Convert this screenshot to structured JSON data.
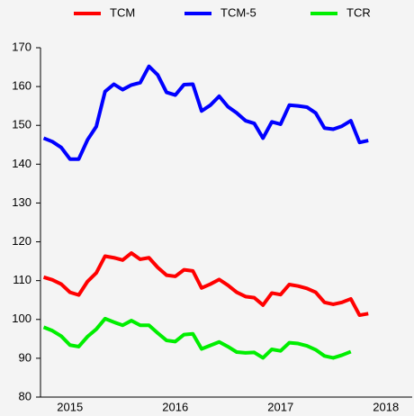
{
  "chart_data": {
    "type": "line",
    "x": [
      2015.0,
      2015.083,
      2015.167,
      2015.25,
      2015.333,
      2015.417,
      2015.5,
      2015.583,
      2015.667,
      2015.75,
      2015.833,
      2015.917,
      2016.0,
      2016.083,
      2016.167,
      2016.25,
      2016.333,
      2016.417,
      2016.5,
      2016.583,
      2016.667,
      2016.75,
      2016.833,
      2016.917,
      2017.0,
      2017.083,
      2017.167,
      2017.25,
      2017.333,
      2017.417,
      2017.5,
      2017.583,
      2017.667,
      2017.75,
      2017.833,
      2017.917,
      2018.0,
      2018.083
    ],
    "series": [
      {
        "name": "TCM",
        "color": "#ff0000",
        "values": [
          110.9,
          110.2,
          109.1,
          107.0,
          106.3,
          109.8,
          112.0,
          116.3,
          115.9,
          115.3,
          117.1,
          115.5,
          115.9,
          113.4,
          111.4,
          111.1,
          112.8,
          112.5,
          108.1,
          109.1,
          110.3,
          108.8,
          107.0,
          105.9,
          105.6,
          103.7,
          106.8,
          106.4,
          109.0,
          108.6,
          108.0,
          107.0,
          104.4,
          103.9,
          104.4,
          105.3,
          101.1,
          101.5
        ]
      },
      {
        "name": "TCM-5",
        "color": "#0000ff",
        "values": [
          146.7,
          145.8,
          144.3,
          141.3,
          141.3,
          146.3,
          149.7,
          158.7,
          160.6,
          159.2,
          160.4,
          161.0,
          165.2,
          163.0,
          158.5,
          157.8,
          160.5,
          160.6,
          153.7,
          155.2,
          157.5,
          154.8,
          153.2,
          151.2,
          150.5,
          146.7,
          150.9,
          150.3,
          155.2,
          155.0,
          154.7,
          153.2,
          149.3,
          149.0,
          149.8,
          151.2,
          145.6,
          146.1
        ]
      },
      {
        "name": "TCR",
        "color": "#00ee00",
        "values": [
          98.0,
          97.1,
          95.7,
          93.4,
          93.0,
          95.6,
          97.5,
          100.2,
          99.3,
          98.5,
          99.7,
          98.5,
          98.5,
          96.5,
          94.6,
          94.3,
          96.1,
          96.3,
          92.4,
          93.3,
          94.2,
          93.0,
          91.6,
          91.4,
          91.5,
          90.1,
          92.3,
          91.9,
          94.0,
          93.8,
          93.2,
          92.2,
          90.6,
          90.1,
          90.8,
          91.7,
          null,
          null
        ]
      }
    ],
    "xlim": [
      2014.97,
      2018.5
    ],
    "xticks": [
      {
        "value": 2015.25,
        "label": "2015"
      },
      {
        "value": 2016.25,
        "label": "2016"
      },
      {
        "value": 2017.25,
        "label": "2017"
      },
      {
        "value": 2018.25,
        "label": "2018"
      }
    ],
    "ylim": [
      80,
      170
    ],
    "yticks": [
      80,
      90,
      100,
      110,
      120,
      130,
      140,
      150,
      160,
      170
    ],
    "grid": false,
    "legend": "top"
  }
}
